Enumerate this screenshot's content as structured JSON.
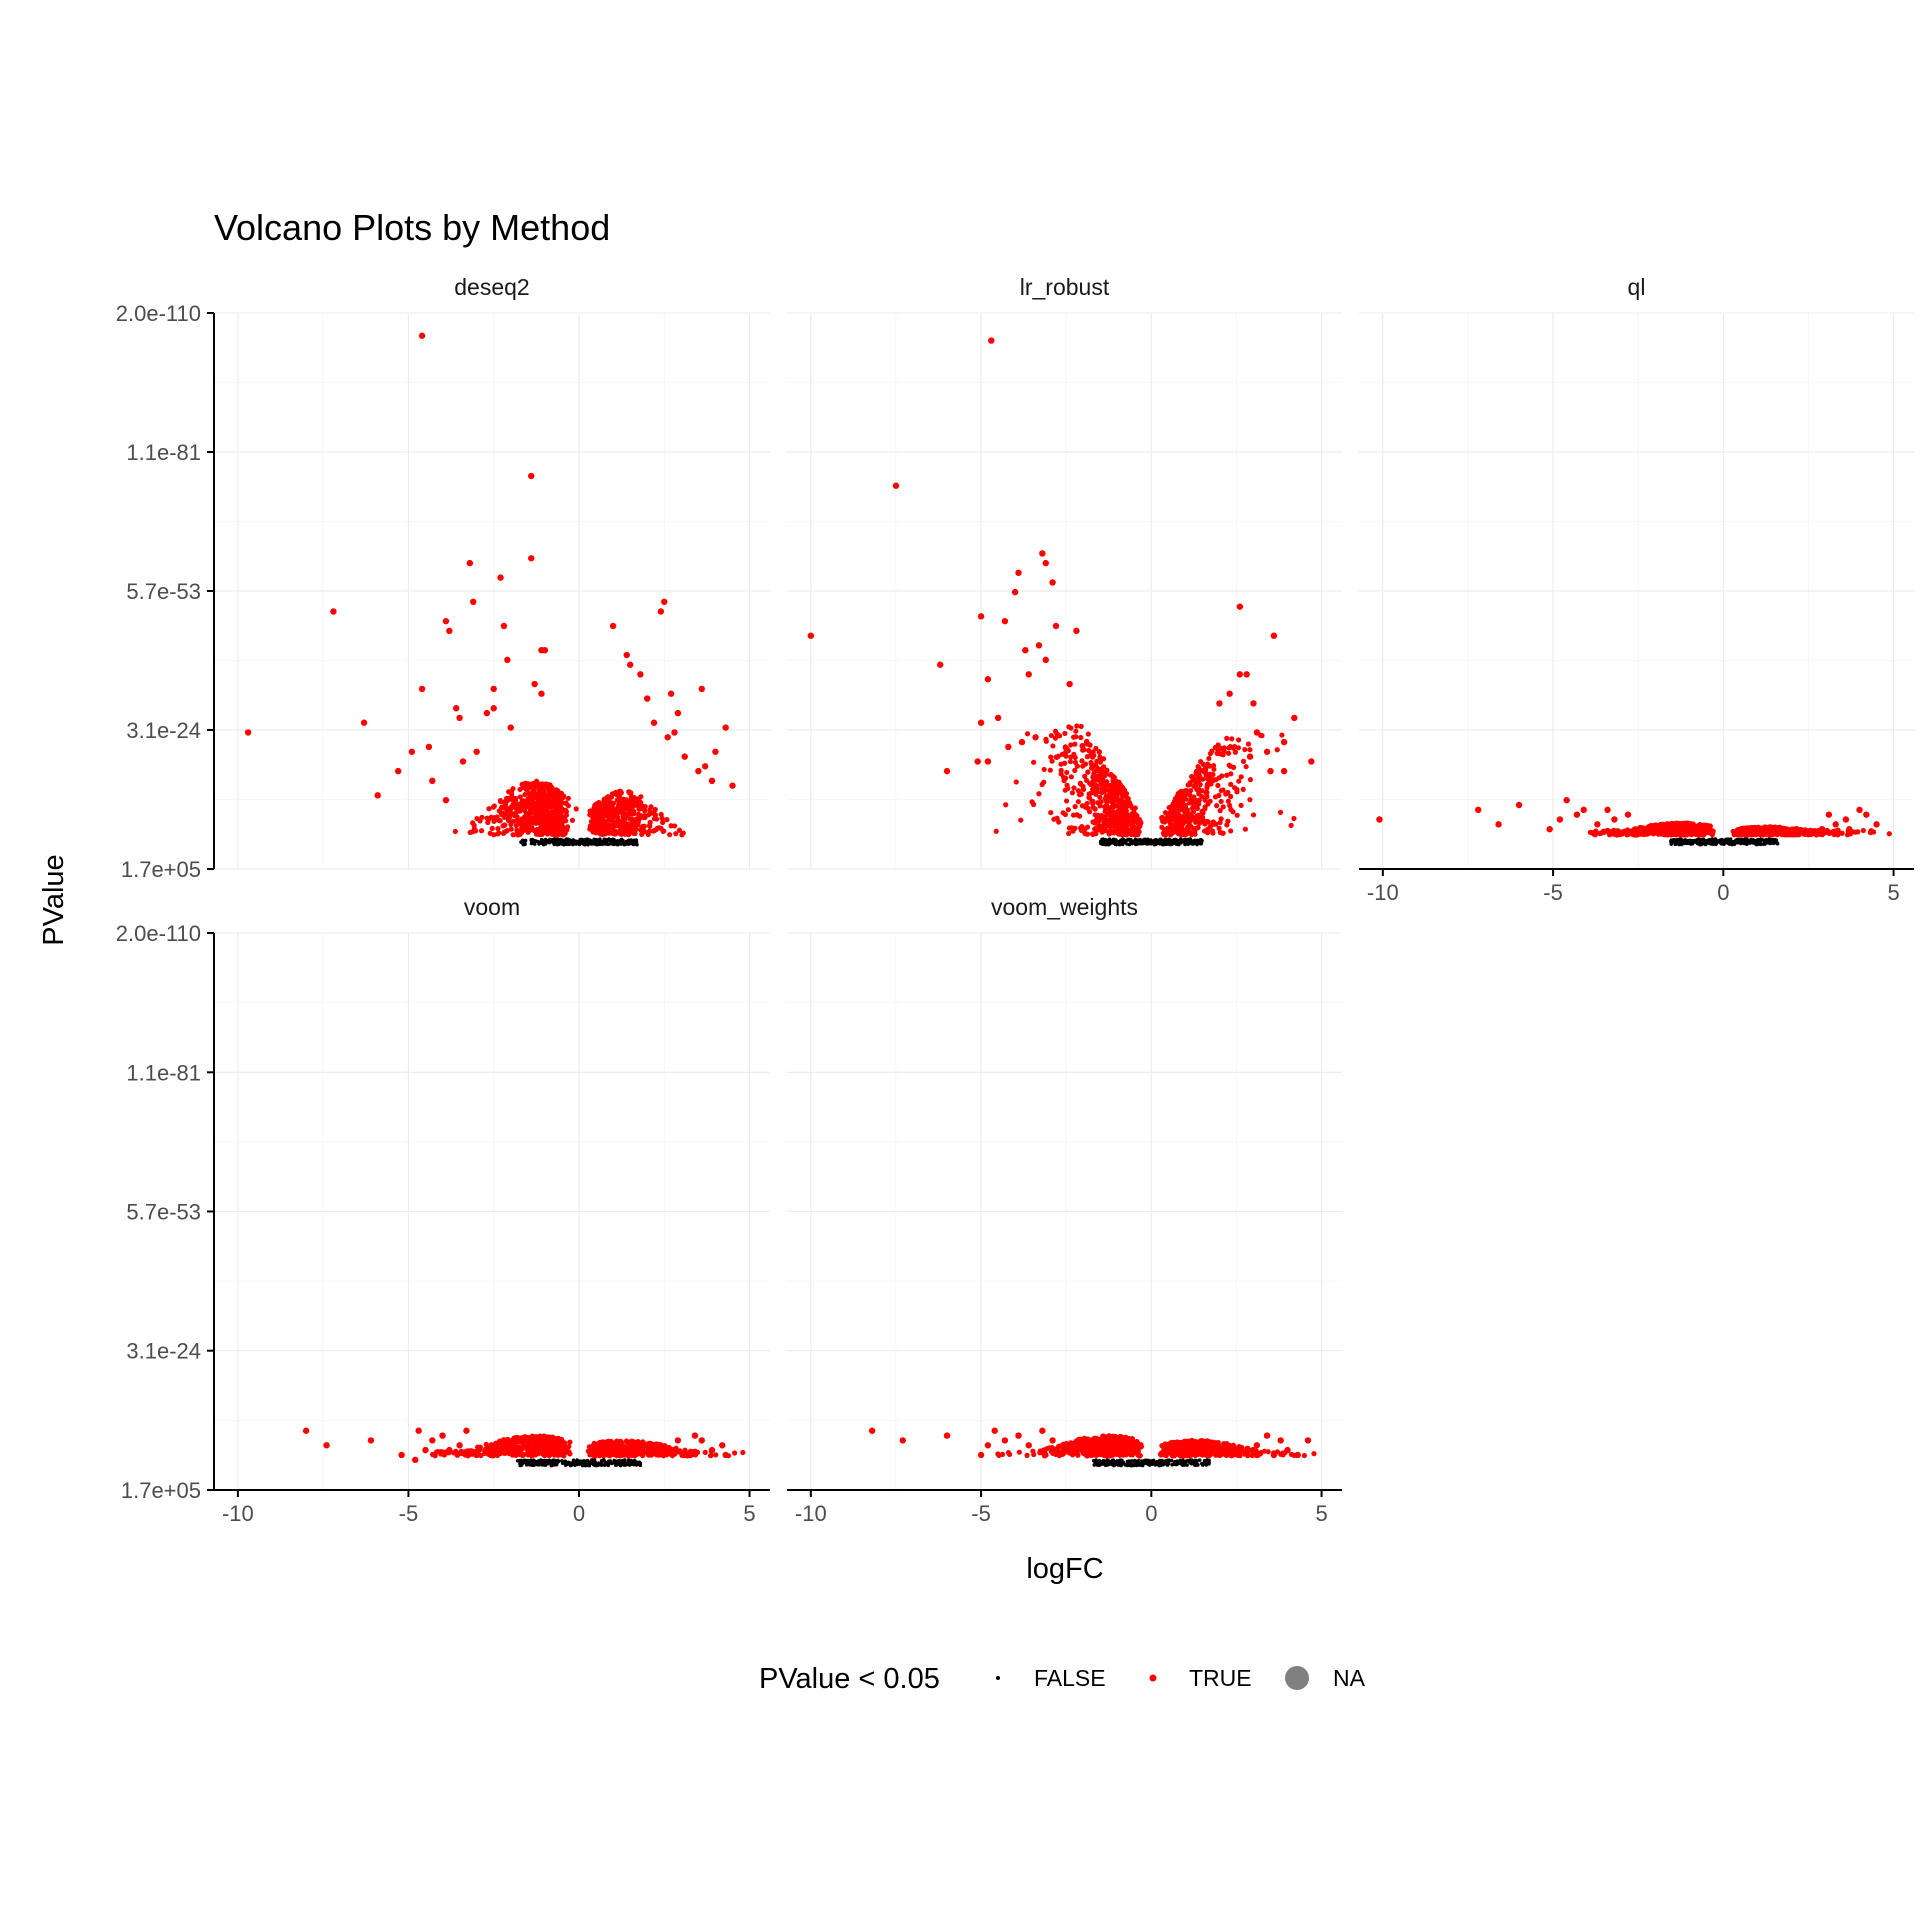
{
  "chart_data": {
    "type": "scatter",
    "title": "Volcano Plots by Method",
    "xlabel": "logFC",
    "ylabel": "PValue",
    "xlim": [
      -10.7,
      5.6
    ],
    "x_ticks": [
      -10,
      -5,
      0,
      5
    ],
    "x_tick_labels": [
      "-10",
      "-5",
      "0",
      "5"
    ],
    "y_scale": "-log10 (reversed)",
    "y_tick_labels": [
      "2.0e-110",
      "1.1e-81",
      "5.7e-53",
      "3.1e-24",
      "1.7e+05"
    ],
    "y_ticks_neglog10": [
      109.7,
      80.96,
      52.24,
      23.51,
      -5.23
    ],
    "ylim_neglog10": [
      -5.23,
      109.7
    ],
    "grid": "major and minor",
    "legend": {
      "title": "PValue < 0.05",
      "position": "bottom",
      "entries": [
        {
          "label": "FALSE",
          "color": "#000000"
        },
        {
          "label": "TRUE",
          "color": "#ff0000"
        },
        {
          "label": "NA",
          "color": "#808080"
        }
      ]
    },
    "panels": [
      {
        "name": "deseq2",
        "bulk": {
          "spread_neg": 1.9,
          "spread_pos": 1.6,
          "peak_neg": 12.5,
          "peak_pos": 10.5,
          "threshold": 1.3,
          "false_width": 1.7
        },
        "outliers": [
          [
            -4.6,
            105
          ],
          [
            -1.4,
            76
          ],
          [
            -1.4,
            59
          ],
          [
            -3.2,
            58
          ],
          [
            -2.3,
            55
          ],
          [
            -7.2,
            48
          ],
          [
            -2.2,
            45
          ],
          [
            -3.1,
            50
          ],
          [
            -3.9,
            46
          ],
          [
            -3.8,
            44
          ],
          [
            -4.6,
            32
          ],
          [
            -1.1,
            40
          ],
          [
            -1.0,
            40
          ],
          [
            -2.1,
            38
          ],
          [
            -2.5,
            32
          ],
          [
            -1.3,
            33
          ],
          [
            -1.1,
            31
          ],
          [
            -2.7,
            27
          ],
          [
            -3.6,
            28
          ],
          [
            -3.5,
            26
          ],
          [
            -6.3,
            25
          ],
          [
            -9.7,
            23
          ],
          [
            -4.9,
            19
          ],
          [
            -5.3,
            15
          ],
          [
            -5.9,
            10
          ],
          [
            -4.4,
            20
          ],
          [
            -4.3,
            13
          ],
          [
            -3.9,
            9
          ],
          [
            -3.4,
            17
          ],
          [
            -3.0,
            19
          ],
          [
            -2.5,
            28
          ],
          [
            -2.0,
            24
          ],
          [
            1.0,
            45
          ],
          [
            1.4,
            39
          ],
          [
            2.4,
            48
          ],
          [
            2.5,
            50
          ],
          [
            3.6,
            32
          ],
          [
            4.3,
            24
          ],
          [
            4.5,
            12
          ],
          [
            1.8,
            35
          ],
          [
            1.5,
            37
          ],
          [
            2.7,
            31
          ],
          [
            2.9,
            27
          ],
          [
            2.2,
            25
          ],
          [
            2.6,
            22
          ],
          [
            3.1,
            18
          ],
          [
            3.5,
            15
          ],
          [
            3.9,
            13
          ],
          [
            4.0,
            19
          ],
          [
            3.7,
            16
          ],
          [
            2.0,
            30
          ],
          [
            2.8,
            23
          ]
        ]
      },
      {
        "name": "lr_robust",
        "bulk": {
          "spread_neg": 2.3,
          "spread_pos": 2.1,
          "peak_neg": 24.0,
          "peak_pos": 22.0,
          "threshold": 1.3,
          "false_width": 1.5,
          "v_shape": true
        },
        "outliers": [
          [
            -4.7,
            104
          ],
          [
            -7.5,
            74
          ],
          [
            -3.2,
            60
          ],
          [
            -3.1,
            58
          ],
          [
            -3.9,
            56
          ],
          [
            -2.9,
            54
          ],
          [
            -4.0,
            52
          ],
          [
            -10.0,
            43
          ],
          [
            -5.0,
            47
          ],
          [
            -4.3,
            46
          ],
          [
            -3.3,
            41
          ],
          [
            -2.8,
            45
          ],
          [
            -2.2,
            44
          ],
          [
            -3.7,
            40
          ],
          [
            -6.2,
            37
          ],
          [
            -3.1,
            38
          ],
          [
            -3.6,
            35
          ],
          [
            -4.8,
            34
          ],
          [
            -2.4,
            33
          ],
          [
            -5.0,
            25
          ],
          [
            -4.5,
            26
          ],
          [
            -6.0,
            15
          ],
          [
            -5.1,
            17
          ],
          [
            -4.8,
            17
          ],
          [
            -4.2,
            20
          ],
          [
            -3.8,
            21
          ],
          [
            -3.4,
            22
          ],
          [
            2.6,
            49
          ],
          [
            3.6,
            43
          ],
          [
            2.8,
            35
          ],
          [
            2.6,
            35
          ],
          [
            2.3,
            31
          ],
          [
            2.0,
            29
          ],
          [
            3.0,
            29
          ],
          [
            4.2,
            26
          ],
          [
            3.9,
            21
          ],
          [
            4.7,
            17
          ],
          [
            3.5,
            15
          ],
          [
            3.9,
            15
          ],
          [
            3.4,
            19
          ],
          [
            3.1,
            23
          ],
          [
            2.9,
            18
          ]
        ]
      },
      {
        "name": "ql",
        "bulk": {
          "spread_neg": 2.4,
          "spread_pos": 2.6,
          "peak_neg": 3.8,
          "peak_pos": 3.0,
          "threshold": 1.3,
          "false_width": 1.6
        },
        "outliers": [
          [
            -10.1,
            5
          ],
          [
            -7.2,
            7
          ],
          [
            -6.0,
            8
          ],
          [
            -5.1,
            3
          ],
          [
            -4.6,
            9
          ],
          [
            -4.3,
            6
          ],
          [
            -4.1,
            7
          ],
          [
            -3.7,
            4
          ],
          [
            -3.4,
            7
          ],
          [
            -6.6,
            4
          ],
          [
            -4.8,
            5
          ],
          [
            -3.2,
            5
          ],
          [
            -2.8,
            6
          ],
          [
            3.6,
            5
          ],
          [
            4.0,
            7
          ],
          [
            4.2,
            6
          ],
          [
            4.5,
            4
          ],
          [
            3.7,
            3
          ],
          [
            3.3,
            4
          ],
          [
            3.1,
            6
          ],
          [
            2.9,
            3
          ]
        ]
      },
      {
        "name": "voom",
        "bulk": {
          "spread_neg": 2.5,
          "spread_pos": 2.6,
          "peak_neg": 5.5,
          "peak_pos": 4.5,
          "threshold": 1.3,
          "false_width": 1.8
        },
        "outliers": [
          [
            -8.0,
            7
          ],
          [
            -7.4,
            4
          ],
          [
            -6.1,
            5
          ],
          [
            -4.7,
            7
          ],
          [
            -4.5,
            3
          ],
          [
            -4.8,
            1
          ],
          [
            -5.2,
            2
          ],
          [
            -4.3,
            5
          ],
          [
            -4.0,
            6
          ],
          [
            -3.8,
            3
          ],
          [
            -3.5,
            4
          ],
          [
            -3.3,
            7
          ],
          [
            -3.0,
            2
          ],
          [
            3.6,
            5
          ],
          [
            4.2,
            4
          ],
          [
            4.3,
            2
          ],
          [
            3.9,
            3
          ],
          [
            3.4,
            6
          ],
          [
            3.1,
            2
          ],
          [
            2.9,
            5
          ]
        ]
      },
      {
        "name": "voom_weights",
        "bulk": {
          "spread_neg": 2.4,
          "spread_pos": 2.5,
          "peak_neg": 5.5,
          "peak_pos": 4.6,
          "threshold": 1.3,
          "false_width": 1.7
        },
        "outliers": [
          [
            -8.2,
            7
          ],
          [
            -7.3,
            5
          ],
          [
            -6.0,
            6
          ],
          [
            -5.0,
            2
          ],
          [
            -4.8,
            4
          ],
          [
            -4.6,
            7
          ],
          [
            -4.3,
            5
          ],
          [
            -3.9,
            6
          ],
          [
            -3.6,
            4
          ],
          [
            -3.2,
            7
          ],
          [
            -2.9,
            5
          ],
          [
            3.4,
            6
          ],
          [
            3.8,
            5
          ],
          [
            4.0,
            3
          ],
          [
            4.3,
            2
          ],
          [
            4.6,
            5
          ],
          [
            3.1,
            4
          ],
          [
            3.6,
            2
          ]
        ]
      }
    ]
  }
}
